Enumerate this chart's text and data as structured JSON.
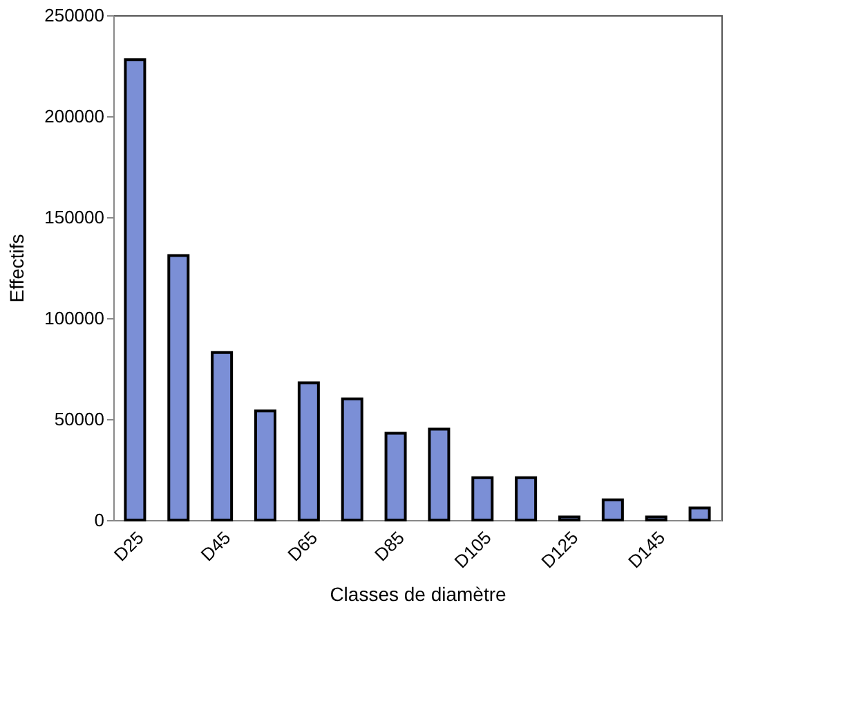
{
  "chart_data": {
    "type": "bar",
    "xlabel": "Classes de diamètre",
    "ylabel": "Effectifs",
    "categories": [
      "D25",
      null,
      "D45",
      null,
      "D65",
      null,
      "D85",
      null,
      "D105",
      null,
      "D125",
      null,
      "D145",
      null
    ],
    "values": [
      228000,
      131000,
      83000,
      54000,
      68000,
      60000,
      43000,
      45000,
      21000,
      21000,
      1500,
      10000,
      1500,
      6000
    ],
    "color": "#7b8fd6",
    "ylim": [
      0,
      250000
    ],
    "yticks": [
      0,
      50000,
      100000,
      150000,
      200000,
      250000
    ],
    "grid": false
  }
}
